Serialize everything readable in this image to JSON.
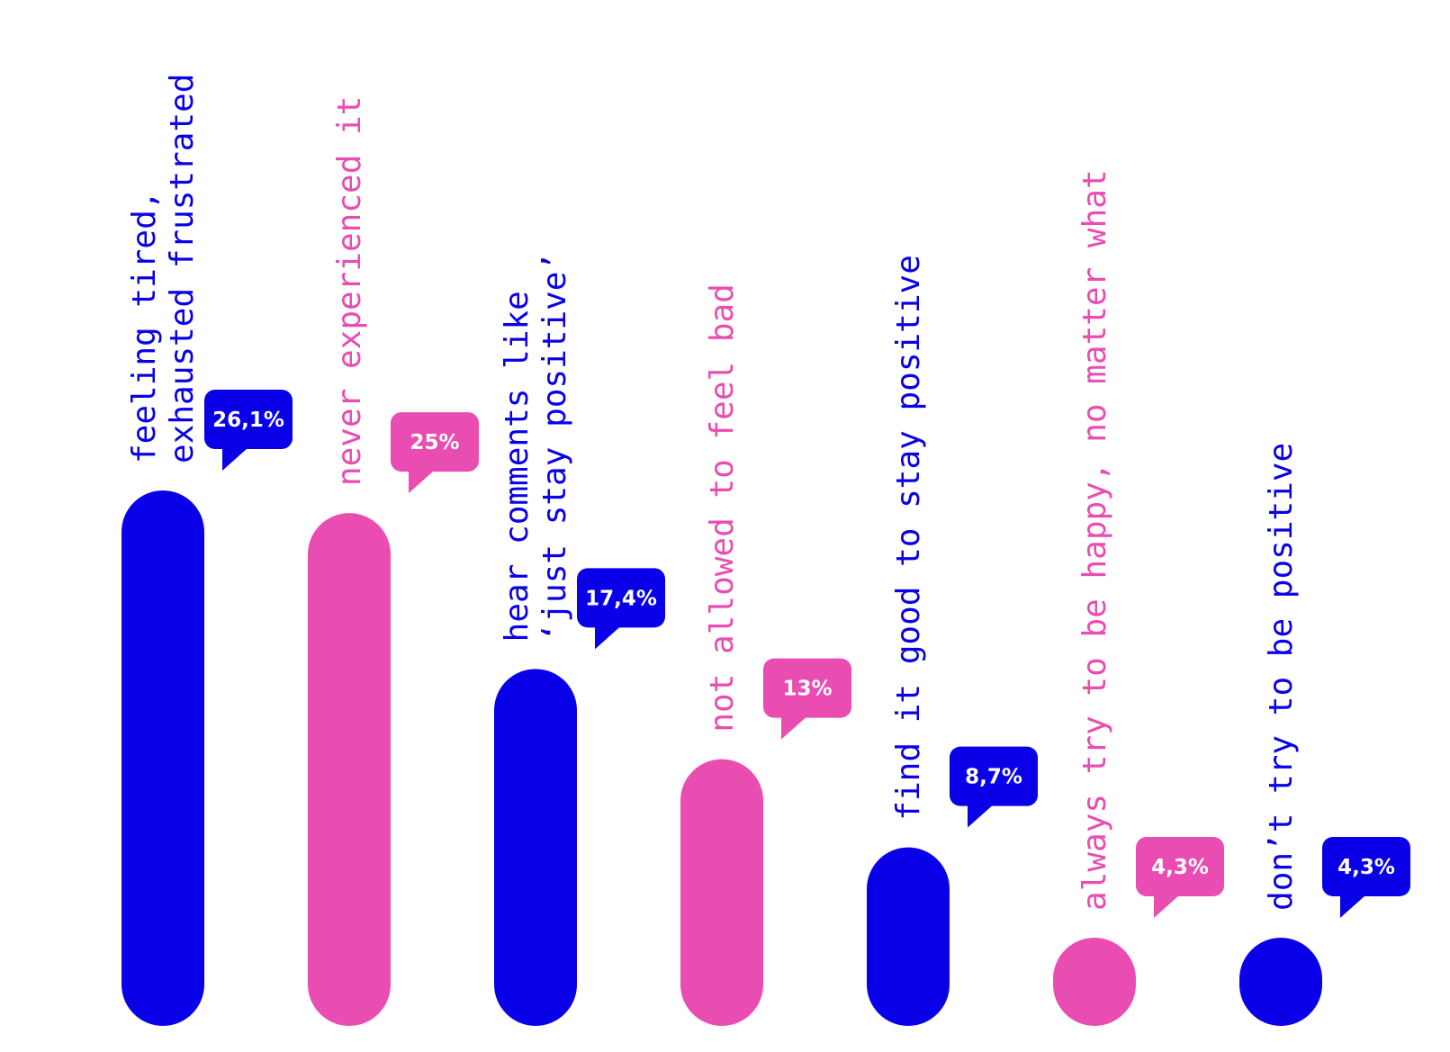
{
  "chart_data": {
    "type": "bar",
    "categories": [
      [
        "feeling tired,",
        "exhausted frustrated"
      ],
      [
        "never experienced it"
      ],
      [
        "hear comments like",
        "‘just stay positive’"
      ],
      [
        "not allowed to feel bad"
      ],
      [
        "find it good to stay positive"
      ],
      [
        "always try to be happy, no matter what"
      ],
      [
        "don’t try to be positive"
      ]
    ],
    "values": [
      26.1,
      25,
      17.4,
      13,
      8.7,
      4.3,
      4.3
    ],
    "value_labels": [
      "26,1%",
      "25%",
      "17,4%",
      "13%",
      "8,7%",
      "4,3%",
      "4,3%"
    ],
    "bar_colors": [
      "#0a00e8",
      "#e94db1",
      "#0a00e8",
      "#e94db1",
      "#0a00e8",
      "#e94db1",
      "#0a00e8"
    ],
    "title": "",
    "xlabel": "",
    "ylabel": "",
    "ylim": [
      0,
      26.1
    ],
    "grid": false,
    "legend": "none"
  }
}
